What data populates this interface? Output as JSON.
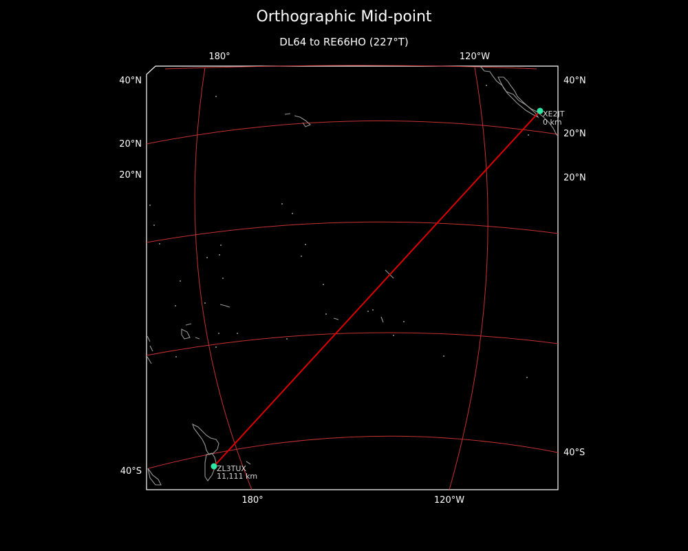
{
  "title": "Orthographic Mid-point",
  "subtitle": "DL64 to RE66HO (227°T)",
  "ticks": {
    "top_lon_1": "180°",
    "top_lon_2": "120°W",
    "bottom_lon_1": "180°",
    "bottom_lon_2": "120°W",
    "left_lat_1": "40°N",
    "left_lat_2": "20°N",
    "left_lat_3": "20°N",
    "left_lat_4": "40°S",
    "right_lat_1": "40°N",
    "right_lat_2": "20°N",
    "right_lat_3": "20°N",
    "right_lat_4": "40°S"
  },
  "stations": {
    "start": {
      "call": "XE2JT",
      "distance": "0 km"
    },
    "end": {
      "call": "ZL3TUX",
      "distance": "11,111 km"
    }
  },
  "colors": {
    "background": "#000000",
    "graticule": "#c83232",
    "path": "#e00000",
    "coastline": "#9a9a9a",
    "marker": "#2ee8a8",
    "frame": "#ffffff"
  },
  "icons": {
    "station_marker": "circle-marker"
  }
}
